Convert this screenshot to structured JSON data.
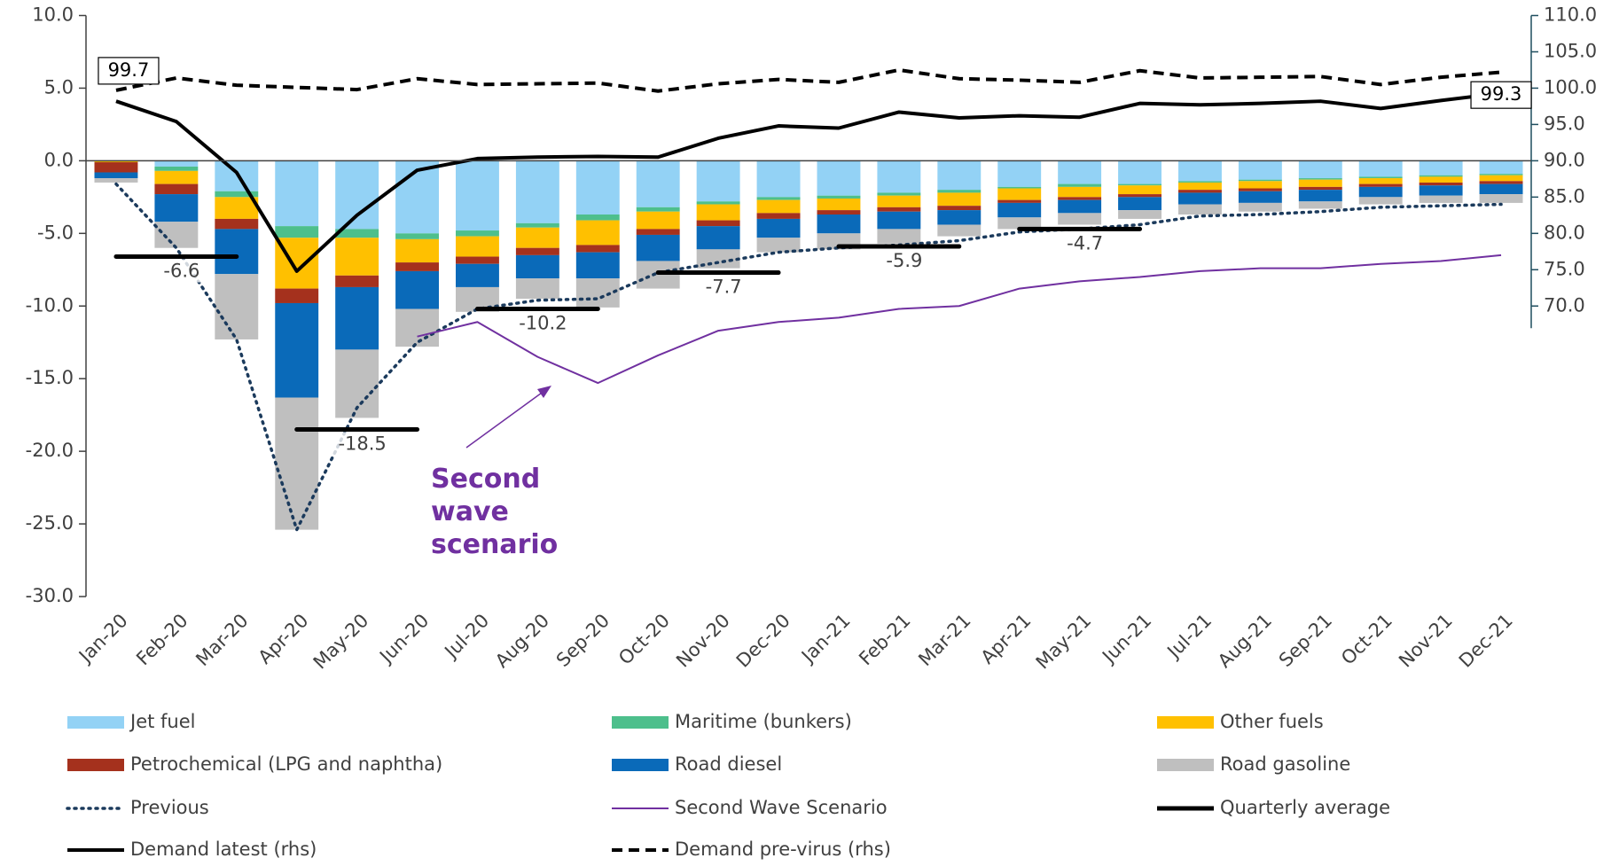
{
  "chart_data": {
    "type": "bar",
    "categories": [
      "Jan-20",
      "Feb-20",
      "Mar-20",
      "Apr-20",
      "May-20",
      "Jun-20",
      "Jul-20",
      "Aug-20",
      "Sep-20",
      "Oct-20",
      "Nov-20",
      "Dec-20",
      "Jan-21",
      "Feb-21",
      "Mar-21",
      "Apr-21",
      "May-21",
      "Jun-21",
      "Jul-21",
      "Aug-21",
      "Sep-21",
      "Oct-21",
      "Nov-21",
      "Dec-21"
    ],
    "ylim": [
      -30,
      10
    ],
    "yticks": [
      {
        "value": -30,
        "label": "-30.0"
      },
      {
        "value": -25,
        "label": "-25.0"
      },
      {
        "value": -20,
        "label": "-20.0"
      },
      {
        "value": -15,
        "label": "-15.0"
      },
      {
        "value": -10,
        "label": "-10.0"
      },
      {
        "value": -5,
        "label": "-5.0"
      },
      {
        "value": 0,
        "label": "0.0"
      },
      {
        "value": 5,
        "label": "5.0"
      },
      {
        "value": 10,
        "label": "10.0"
      }
    ],
    "y2lim": [
      30,
      110
    ],
    "y2ticks": [
      {
        "value": 70,
        "label": "70.0"
      },
      {
        "value": 75,
        "label": "75.0"
      },
      {
        "value": 80,
        "label": "80.0"
      },
      {
        "value": 85,
        "label": "85.0"
      },
      {
        "value": 90,
        "label": "90.0"
      },
      {
        "value": 95,
        "label": "95.0"
      },
      {
        "value": 100,
        "label": "100.0"
      },
      {
        "value": 105,
        "label": "105.0"
      },
      {
        "value": 110,
        "label": "110.0"
      }
    ],
    "stacked": true,
    "annotation": "Second wave scenario",
    "series": [
      {
        "name": "Jet fuel",
        "type": "bar",
        "color": "#93d2f5",
        "values": [
          0,
          -0.4,
          -2.1,
          -4.5,
          -4.7,
          -5.0,
          -4.8,
          -4.3,
          -3.7,
          -3.2,
          -2.8,
          -2.5,
          -2.4,
          -2.2,
          -2.0,
          -1.8,
          -1.6,
          -1.6,
          -1.4,
          -1.3,
          -1.2,
          -1.1,
          -1.0,
          -0.9
        ]
      },
      {
        "name": "Maritime (bunkers)",
        "type": "bar",
        "color": "#4dbf8c",
        "values": [
          0,
          -0.3,
          -0.4,
          -0.8,
          -0.6,
          -0.4,
          -0.4,
          -0.3,
          -0.4,
          -0.3,
          -0.2,
          -0.2,
          -0.2,
          -0.2,
          -0.2,
          -0.1,
          -0.2,
          -0.1,
          -0.1,
          -0.1,
          -0.1,
          -0.1,
          -0.1,
          -0.1
        ]
      },
      {
        "name": "Other fuels",
        "type": "bar",
        "color": "#ffc000",
        "values": [
          -0.1,
          -0.9,
          -1.5,
          -3.5,
          -2.6,
          -1.6,
          -1.4,
          -1.4,
          -1.7,
          -1.2,
          -1.1,
          -0.9,
          -0.8,
          -0.8,
          -0.9,
          -0.8,
          -0.7,
          -0.6,
          -0.5,
          -0.5,
          -0.5,
          -0.4,
          -0.4,
          -0.4
        ]
      },
      {
        "name": "Petrochemical (LPG and naphtha)",
        "type": "bar",
        "color": "#a5311d",
        "values": [
          -0.7,
          -0.7,
          -0.7,
          -1.0,
          -0.8,
          -0.6,
          -0.5,
          -0.5,
          -0.5,
          -0.4,
          -0.4,
          -0.4,
          -0.3,
          -0.3,
          -0.3,
          -0.2,
          -0.2,
          -0.2,
          -0.2,
          -0.2,
          -0.2,
          -0.2,
          -0.2,
          -0.2
        ]
      },
      {
        "name": "Road diesel",
        "type": "bar",
        "color": "#0a6ab9",
        "values": [
          -0.4,
          -1.9,
          -3.1,
          -6.5,
          -4.3,
          -2.6,
          -1.6,
          -1.6,
          -1.8,
          -1.8,
          -1.6,
          -1.3,
          -1.3,
          -1.2,
          -1.0,
          -1.0,
          -0.9,
          -0.9,
          -0.8,
          -0.8,
          -0.8,
          -0.7,
          -0.7,
          -0.7
        ]
      },
      {
        "name": "Road gasoline",
        "type": "bar",
        "color": "#bfbfbf",
        "values": [
          -0.3,
          -1.8,
          -4.5,
          -9.1,
          -4.7,
          -2.6,
          -1.7,
          -1.4,
          -2.0,
          -1.9,
          -1.3,
          -1.0,
          -1.1,
          -1.0,
          -0.8,
          -0.8,
          -0.8,
          -0.6,
          -0.7,
          -0.6,
          -0.5,
          -0.5,
          -0.5,
          -0.6
        ]
      },
      {
        "name": "Previous",
        "type": "line",
        "style": "dotted",
        "color": "#1b3a5c",
        "values": [
          -1.6,
          -6.0,
          -12.3,
          -25.4,
          -17.0,
          -12.5,
          -10.2,
          -9.6,
          -9.5,
          -7.7,
          -7.0,
          -6.3,
          -6.0,
          -5.8,
          -5.5,
          -4.9,
          -4.7,
          -4.4,
          -3.8,
          -3.7,
          -3.5,
          -3.2,
          -3.1,
          -3.0
        ]
      },
      {
        "name": "Second Wave Scenario",
        "type": "line",
        "style": "thin",
        "color": "#7030a0",
        "values": [
          null,
          null,
          null,
          null,
          null,
          -12.1,
          -11.1,
          -13.5,
          -15.3,
          -13.4,
          -11.7,
          -11.1,
          -10.8,
          -10.2,
          -10.0,
          -8.8,
          -8.3,
          -8.0,
          -7.6,
          -7.4,
          -7.4,
          -7.1,
          -6.9,
          -6.5
        ]
      },
      {
        "name": "Quarterly average",
        "type": "step",
        "color": "#000000",
        "values": [
          null,
          -6.6,
          null,
          null,
          -18.5,
          null,
          null,
          -10.2,
          null,
          null,
          -7.7,
          null,
          null,
          -5.9,
          null,
          null,
          -4.7,
          null,
          null,
          null,
          null,
          null,
          null,
          null
        ]
      },
      {
        "name": "Demand latest (rhs)",
        "type": "line",
        "style": "solid",
        "axis": "y2",
        "color": "#000000",
        "values": [
          98.2,
          95.4,
          88.4,
          74.8,
          82.5,
          88.7,
          90.3,
          90.5,
          90.6,
          90.5,
          93.1,
          94.8,
          94.5,
          96.7,
          95.9,
          96.2,
          96.0,
          97.9,
          97.7,
          97.9,
          98.2,
          97.2,
          98.3,
          99.3
        ],
        "value_labels": [
          null,
          null,
          null,
          null,
          null,
          null,
          null,
          null,
          null,
          null,
          null,
          null,
          null,
          null,
          null,
          null,
          null,
          null,
          null,
          null,
          null,
          null,
          null,
          "99.3"
        ]
      },
      {
        "name": "Demand pre-virus (rhs)",
        "type": "line",
        "style": "dashed",
        "axis": "y2",
        "color": "#000000",
        "values": [
          99.7,
          101.4,
          100.4,
          100.1,
          99.8,
          101.3,
          100.5,
          100.6,
          100.7,
          99.6,
          100.6,
          101.2,
          100.8,
          102.5,
          101.3,
          101.1,
          100.8,
          102.4,
          101.4,
          101.5,
          101.6,
          100.5,
          101.5,
          102.2
        ],
        "value_labels": [
          "99.7",
          null,
          null,
          null,
          null,
          null,
          null,
          null,
          null,
          null,
          null,
          null,
          null,
          null,
          null,
          null,
          null,
          null,
          null,
          null,
          null,
          null,
          null,
          null
        ]
      }
    ]
  }
}
